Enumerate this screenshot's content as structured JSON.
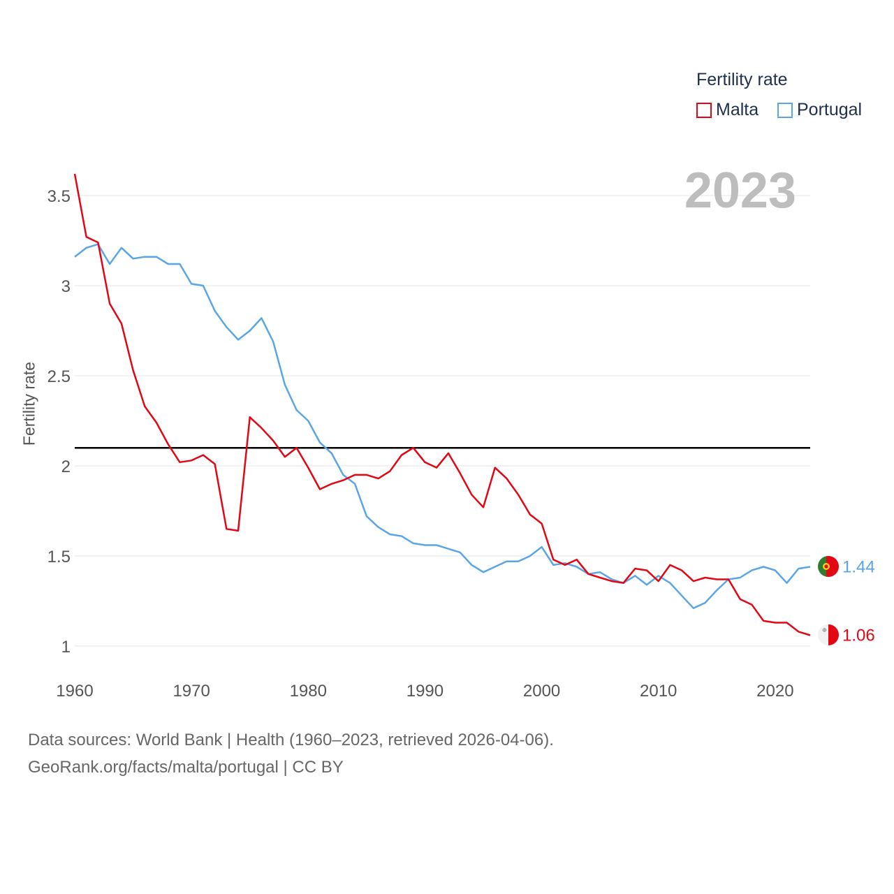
{
  "legend": {
    "title": "Fertility rate",
    "items": [
      {
        "label": "Malta",
        "color": "#e30613"
      },
      {
        "label": "Portugal",
        "color": "#5aa5e6"
      }
    ]
  },
  "year_label": "2023",
  "source": {
    "line1": "Data sources: World Bank | Health (1960–2023, retrieved 2026-04-06).",
    "line2": "GeoRank.org/facts/malta/portugal | CC BY"
  },
  "chart_data": {
    "type": "line",
    "title": "Fertility rate",
    "ylabel": "Fertility rate",
    "xlabel": "",
    "xlim": [
      1960,
      2023
    ],
    "ylim": [
      0.9,
      3.65
    ],
    "xticks": [
      1960,
      1970,
      1980,
      1990,
      2000,
      2010,
      2020
    ],
    "yticks": [
      1,
      1.5,
      2,
      2.5,
      3,
      3.5
    ],
    "ytick_labels": [
      "1",
      "1.5",
      "2",
      "2.5",
      "3",
      "3.5"
    ],
    "reference_line": 2.1,
    "x": [
      1960,
      1961,
      1962,
      1963,
      1964,
      1965,
      1966,
      1967,
      1968,
      1969,
      1970,
      1971,
      1972,
      1973,
      1974,
      1975,
      1976,
      1977,
      1978,
      1979,
      1980,
      1981,
      1982,
      1983,
      1984,
      1985,
      1986,
      1987,
      1988,
      1989,
      1990,
      1991,
      1992,
      1993,
      1994,
      1995,
      1996,
      1997,
      1998,
      1999,
      2000,
      2001,
      2002,
      2003,
      2004,
      2005,
      2006,
      2007,
      2008,
      2009,
      2010,
      2011,
      2012,
      2013,
      2014,
      2015,
      2016,
      2017,
      2018,
      2019,
      2020,
      2021,
      2022,
      2023
    ],
    "series": [
      {
        "name": "Malta",
        "color": "#e30613",
        "end_label": "1.06",
        "values": [
          3.62,
          3.27,
          3.24,
          2.9,
          2.79,
          2.53,
          2.33,
          2.24,
          2.12,
          2.02,
          2.03,
          2.06,
          2.01,
          1.65,
          1.64,
          2.27,
          2.21,
          2.14,
          2.05,
          2.1,
          1.99,
          1.87,
          1.9,
          1.92,
          1.95,
          1.95,
          1.93,
          1.97,
          2.06,
          2.1,
          2.02,
          1.99,
          2.07,
          1.96,
          1.84,
          1.77,
          1.99,
          1.93,
          1.84,
          1.73,
          1.68,
          1.48,
          1.45,
          1.48,
          1.4,
          1.38,
          1.36,
          1.35,
          1.43,
          1.42,
          1.36,
          1.45,
          1.42,
          1.36,
          1.38,
          1.37,
          1.37,
          1.26,
          1.23,
          1.14,
          1.13,
          1.13,
          1.08,
          1.06
        ]
      },
      {
        "name": "Portugal",
        "color": "#5aa5e6",
        "end_label": "1.44",
        "values": [
          3.16,
          3.21,
          3.23,
          3.12,
          3.21,
          3.15,
          3.16,
          3.16,
          3.12,
          3.12,
          3.01,
          3.0,
          2.86,
          2.77,
          2.7,
          2.75,
          2.82,
          2.69,
          2.45,
          2.31,
          2.25,
          2.13,
          2.07,
          1.95,
          1.9,
          1.72,
          1.66,
          1.62,
          1.61,
          1.57,
          1.56,
          1.56,
          1.54,
          1.52,
          1.45,
          1.41,
          1.44,
          1.47,
          1.47,
          1.5,
          1.55,
          1.45,
          1.46,
          1.44,
          1.4,
          1.41,
          1.37,
          1.35,
          1.39,
          1.34,
          1.39,
          1.35,
          1.28,
          1.21,
          1.24,
          1.31,
          1.37,
          1.38,
          1.42,
          1.44,
          1.42,
          1.35,
          1.43,
          1.44
        ]
      }
    ]
  }
}
